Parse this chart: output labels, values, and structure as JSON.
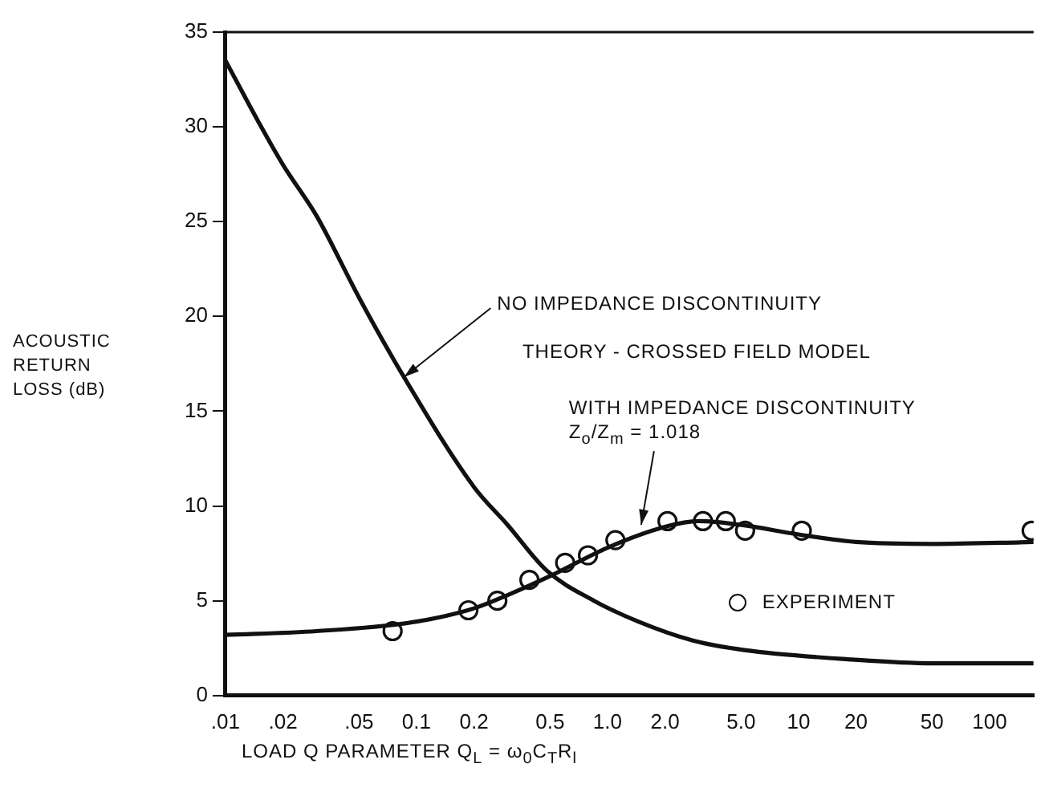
{
  "chart_data": {
    "type": "line",
    "xlabel": "LOAD Q PARAMETER Q$_{L}$ = ω$_{0}$C$_{T}$R$_{l}$",
    "ylabel": "ACOUSTIC RETURN LOSS (dB)",
    "log": "x",
    "xlim": [
      0.01,
      170
    ],
    "ylim": [
      0,
      35
    ],
    "xticks": [
      {
        "value": 0.01,
        "label": ".01"
      },
      {
        "value": 0.02,
        "label": ".02"
      },
      {
        "value": 0.05,
        "label": ".05"
      },
      {
        "value": 0.1,
        "label": "0.1"
      },
      {
        "value": 0.2,
        "label": "0.2"
      },
      {
        "value": 0.5,
        "label": "0.5"
      },
      {
        "value": 1,
        "label": "1.0"
      },
      {
        "value": 2,
        "label": "2.0"
      },
      {
        "value": 5,
        "label": "5.0"
      },
      10,
      20,
      50,
      100
    ],
    "yticks": [
      0,
      5,
      10,
      15,
      20,
      25,
      30,
      35
    ],
    "grid": false,
    "legend": "bottom right",
    "series": [
      {
        "color": "#111111",
        "marker": "none",
        "x": [
          0.01,
          0.015,
          0.02,
          0.03,
          0.05,
          0.086,
          0.2,
          0.3,
          0.48,
          0.85,
          1.45,
          2.8,
          5.2,
          19,
          50,
          170
        ],
        "values": [
          33.5,
          30.2,
          28.0,
          25.3,
          21.0,
          16.8,
          11.0,
          9.0,
          6.6,
          5.0,
          3.9,
          2.9,
          2.4,
          1.9,
          1.7,
          1.7
        ]
      },
      {
        "color": "#111111",
        "marker": "none",
        "x": [
          0.01,
          0.03,
          0.1,
          0.2,
          0.3,
          0.5,
          1,
          2,
          3,
          5,
          10,
          20,
          50,
          170
        ],
        "values": [
          3.2,
          3.4,
          3.9,
          4.6,
          5.3,
          6.3,
          7.8,
          8.9,
          9.2,
          9.0,
          8.5,
          8.1,
          8.0,
          8.1
        ]
      },
      {
        "type": "scatter",
        "name": "EXPERIMENT",
        "color": "#111111",
        "marker": "circle",
        "x": [
          0.075,
          0.187,
          0.265,
          0.39,
          0.6,
          0.79,
          1.1,
          2.06,
          3.16,
          4.16,
          5.25,
          10.4,
          166
        ],
        "values": [
          3.4,
          4.5,
          5.0,
          6.1,
          7.0,
          7.4,
          8.2,
          9.2,
          9.2,
          9.2,
          8.7,
          8.7,
          8.7
        ]
      }
    ],
    "annotations": [
      {
        "text": "NO IMPEDANCE DISCONTINUITY",
        "x": 0.086,
        "y": 16.8
      },
      "THEORY - CROSSED FIELD MODEL",
      {
        "text": "WITH IMPEDANCE DISCONTINUITY\nZ$_{o}$/Z$_{m}$ = 1.018",
        "x": 1.5,
        "y": 9.0
      }
    ]
  }
}
